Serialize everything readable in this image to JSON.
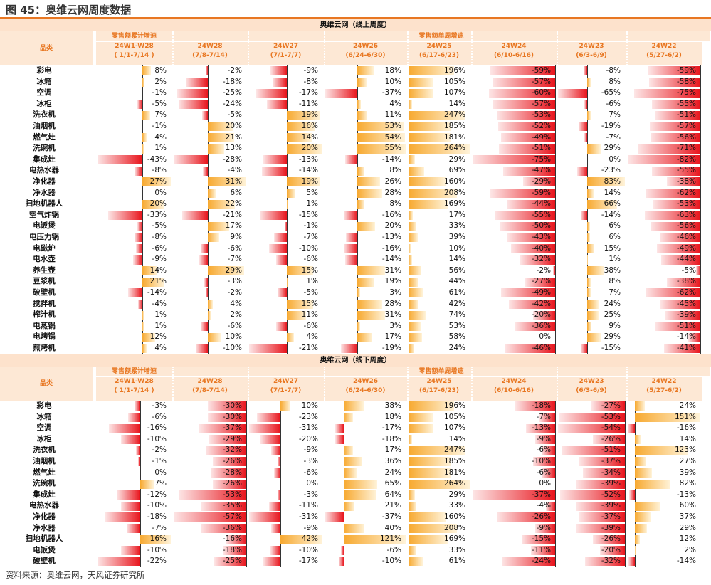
{
  "figure_title": "图 45：奥维云网周度数据",
  "source": "资料来源：奥维云网，天风证券研究所",
  "colors": {
    "positive": "#f7a930",
    "negative": "#e8141c",
    "accent": "#e87722"
  },
  "chart_data": {
    "type": "table",
    "category_header": "品类",
    "cumulative_label": "零售额累计增速",
    "weekly_label": "零售额单周增速",
    "columns": [
      {
        "name": "24W1-W28",
        "period": "( 1/1-7/14 )"
      },
      {
        "name": "24W28",
        "period": "(7/8-7/14)"
      },
      {
        "name": "24W27",
        "period": "(7/1-7/7)"
      },
      {
        "name": "24W26",
        "period": "(6/24-6/30)"
      },
      {
        "name": "24W25",
        "period": "(6/17-6/23)"
      },
      {
        "name": "24W24",
        "period": "(6/10-6/16)"
      },
      {
        "name": "24W23",
        "period": "(6/3-6/9)"
      },
      {
        "name": "24W22",
        "period": "(5/27-6/2)"
      }
    ],
    "sections": [
      {
        "title": "奥维云网（线上周度）",
        "rows": [
          {
            "category": "彩电",
            "values": [
              8,
              -2,
              -9,
              18,
              196,
              -59,
              -8,
              -59
            ]
          },
          {
            "category": "冰箱",
            "values": [
              2,
              -18,
              -8,
              10,
              105,
              -57,
              8,
              -58
            ]
          },
          {
            "category": "空调",
            "values": [
              -1,
              -25,
              -17,
              -37,
              107,
              -60,
              -65,
              -75
            ]
          },
          {
            "category": "冰柜",
            "values": [
              -5,
              -24,
              -11,
              4,
              14,
              -57,
              -6,
              -55
            ]
          },
          {
            "category": "洗衣机",
            "values": [
              7,
              -5,
              19,
              11,
              247,
              -53,
              7,
              -51
            ]
          },
          {
            "category": "油烟机",
            "values": [
              -1,
              20,
              16,
              53,
              185,
              -52,
              -19,
              -57
            ]
          },
          {
            "category": "燃气灶",
            "values": [
              4,
              21,
              14,
              54,
              181,
              -49,
              -7,
              -56
            ]
          },
          {
            "category": "洗碗机",
            "values": [
              1,
              13,
              20,
              55,
              264,
              -51,
              29,
              -71
            ]
          },
          {
            "category": "集成灶",
            "values": [
              -43,
              -28,
              -13,
              -14,
              29,
              -75,
              0,
              -82
            ]
          },
          {
            "category": "电热水器",
            "values": [
              -8,
              -4,
              -14,
              8,
              69,
              -47,
              -23,
              -55
            ]
          },
          {
            "category": "净化器",
            "values": [
              27,
              31,
              19,
              26,
              160,
              -29,
              83,
              -38
            ]
          },
          {
            "category": "净水器",
            "values": [
              0,
              6,
              5,
              28,
              208,
              -59,
              14,
              -62
            ]
          },
          {
            "category": "扫地机器人",
            "values": [
              20,
              22,
              1,
              8,
              169,
              -44,
              66,
              -53
            ]
          },
          {
            "category": "空气炸锅",
            "values": [
              -33,
              -21,
              -15,
              -16,
              17,
              -55,
              -14,
              -63
            ]
          },
          {
            "category": "电饭煲",
            "values": [
              -5,
              17,
              -1,
              20,
              33,
              -50,
              6,
              -56
            ]
          },
          {
            "category": "电压力锅",
            "values": [
              -8,
              9,
              -7,
              -13,
              39,
              -43,
              6,
              -46
            ]
          },
          {
            "category": "电磁炉",
            "values": [
              -6,
              -6,
              -10,
              -16,
              10,
              -40,
              15,
              -49
            ]
          },
          {
            "category": "电水壶",
            "values": [
              -9,
              -7,
              -6,
              -14,
              14,
              -32,
              1,
              -44
            ]
          },
          {
            "category": "养生壶",
            "values": [
              14,
              29,
              15,
              31,
              56,
              -2,
              38,
              -5
            ]
          },
          {
            "category": "豆浆机",
            "values": [
              21,
              -3,
              1,
              19,
              44,
              -27,
              8,
              -38
            ]
          },
          {
            "category": "破壁机",
            "values": [
              -14,
              -2,
              -5,
              3,
              61,
              -49,
              7,
              -62
            ]
          },
          {
            "category": "搅拌机",
            "values": [
              -4,
              4,
              15,
              28,
              42,
              -42,
              24,
              -45
            ]
          },
          {
            "category": "榨汁机",
            "values": [
              1,
              2,
              11,
              31,
              74,
              -20,
              25,
              -39
            ]
          },
          {
            "category": "电蒸锅",
            "values": [
              1,
              -6,
              -6,
              3,
              53,
              -36,
              9,
              -51
            ]
          },
          {
            "category": "电烤锅",
            "values": [
              12,
              10,
              4,
              17,
              58,
              0,
              29,
              -14
            ]
          },
          {
            "category": "煎烤机",
            "values": [
              4,
              -10,
              -21,
              -19,
              24,
              -46,
              -15,
              -41
            ]
          }
        ]
      },
      {
        "title": "奥维云网（线下周度）",
        "rows": [
          {
            "category": "彩电",
            "values": [
              -3,
              -30,
              10,
              38,
              196,
              -18,
              -27,
              24
            ]
          },
          {
            "category": "冰箱",
            "values": [
              -6,
              -30,
              -23,
              18,
              105,
              -7,
              -53,
              151
            ]
          },
          {
            "category": "空调",
            "values": [
              -16,
              -37,
              -31,
              -17,
              107,
              -13,
              -54,
              -16
            ]
          },
          {
            "category": "冰柜",
            "values": [
              -10,
              -29,
              -20,
              -18,
              14,
              -9,
              -26,
              14
            ]
          },
          {
            "category": "洗衣机",
            "values": [
              -2,
              -32,
              -9,
              17,
              247,
              -6,
              -51,
              123
            ]
          },
          {
            "category": "油烟机",
            "values": [
              -1,
              -26,
              -3,
              36,
              185,
              -10,
              -37,
              27
            ]
          },
          {
            "category": "燃气灶",
            "values": [
              0,
              -28,
              -6,
              24,
              181,
              -6,
              -34,
              39
            ]
          },
          {
            "category": "洗碗机",
            "values": [
              7,
              -26,
              0,
              65,
              264,
              0,
              -39,
              82
            ]
          },
          {
            "category": "集成灶",
            "values": [
              -12,
              -53,
              -3,
              64,
              29,
              -37,
              -52,
              -13
            ]
          },
          {
            "category": "电热水器",
            "values": [
              -10,
              -35,
              -11,
              21,
              33,
              -4,
              -39,
              60
            ]
          },
          {
            "category": "净化器",
            "values": [
              -18,
              -57,
              -31,
              -37,
              160,
              -26,
              -37,
              37
            ]
          },
          {
            "category": "净水器",
            "values": [
              -7,
              -36,
              -9,
              40,
              208,
              -9,
              -39,
              29
            ]
          },
          {
            "category": "扫地机器人",
            "values": [
              16,
              -16,
              42,
              121,
              169,
              -15,
              -26,
              12
            ]
          },
          {
            "category": "电饭煲",
            "values": [
              -10,
              -18,
              -10,
              -6,
              33,
              -11,
              -20,
              2
            ]
          },
          {
            "category": "破壁机",
            "values": [
              -22,
              -25,
              -17,
              -10,
              61,
              -24,
              -32,
              -14
            ]
          }
        ]
      }
    ]
  }
}
